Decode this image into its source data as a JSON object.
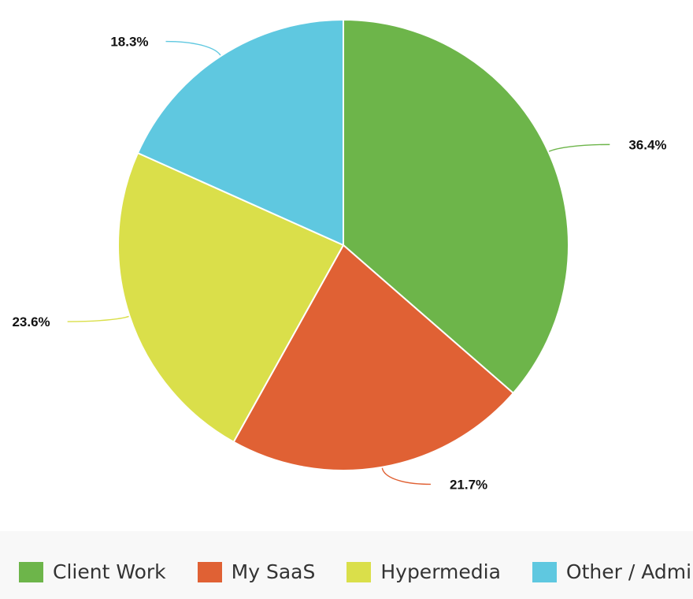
{
  "chart_data": {
    "type": "pie",
    "title": "",
    "categories": [
      "Client Work",
      "My SaaS",
      "Hypermedia",
      "Other / Admin"
    ],
    "values": [
      36.4,
      21.7,
      23.6,
      18.3
    ],
    "labels": [
      "36.4%",
      "21.7%",
      "23.6%",
      "18.3%"
    ],
    "colors": [
      "#6db54a",
      "#e06134",
      "#dadf4a",
      "#5fc8e0"
    ],
    "legend": "bottom",
    "start_angle": "top",
    "direction": "clockwise"
  },
  "legend": {
    "items": [
      {
        "label": "Client Work",
        "color": "#6db54a"
      },
      {
        "label": "My SaaS",
        "color": "#e06134"
      },
      {
        "label": "Hypermedia",
        "color": "#dadf4a"
      },
      {
        "label": "Other / Admin",
        "color": "#5fc8e0"
      }
    ]
  }
}
